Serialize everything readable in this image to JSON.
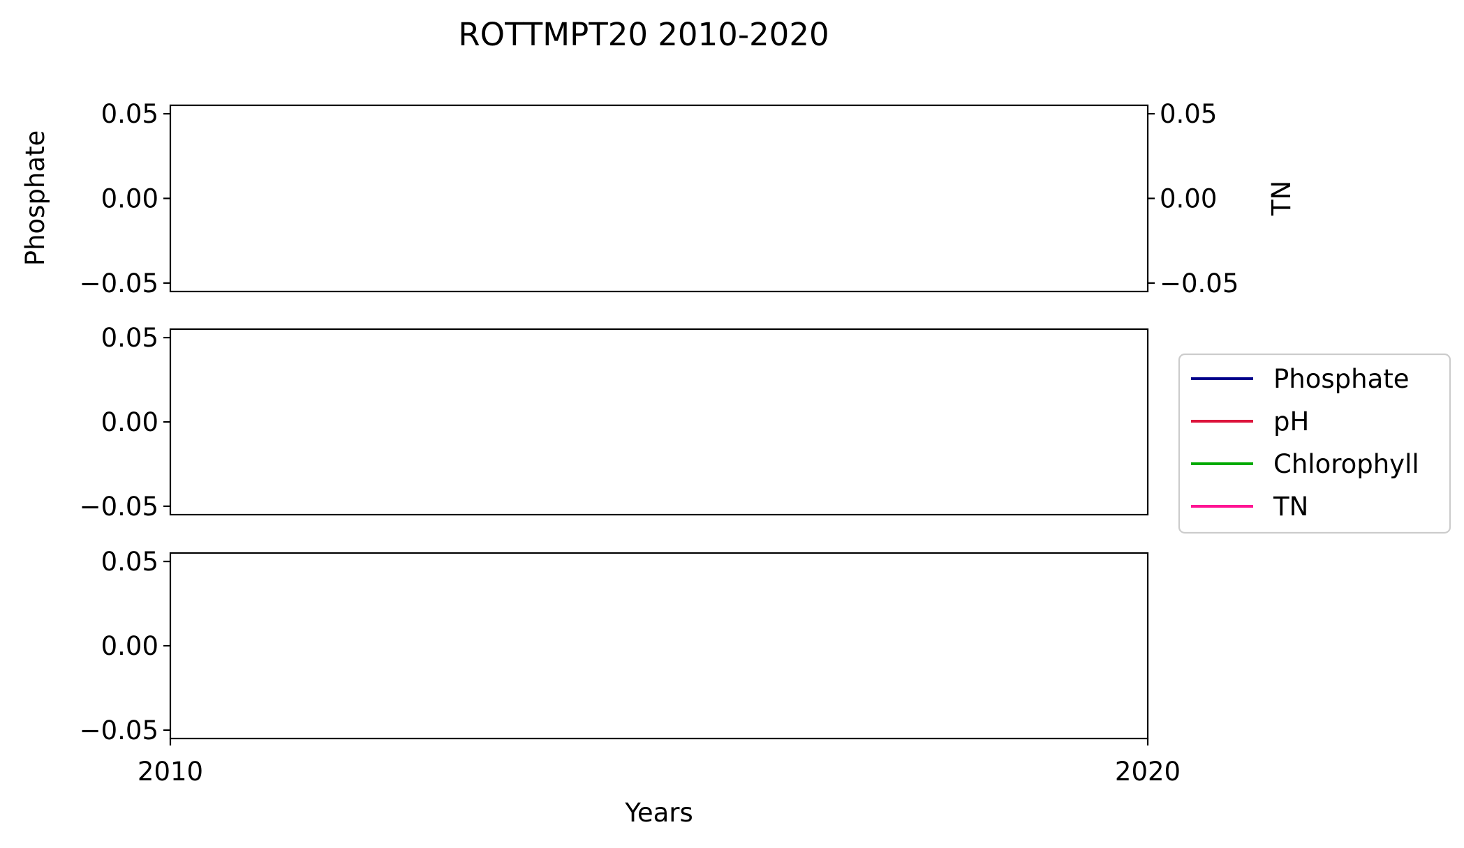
{
  "chart_data": {
    "type": "line",
    "title": "ROTTMPT20 2010-2020",
    "xlabel": "Years",
    "x_ticks": [
      "2010",
      "2020"
    ],
    "xlim": [
      2010,
      2020
    ],
    "grid": false,
    "legend_placement": "center-right",
    "series": [
      {
        "name": "Phosphate",
        "color": "#00008b",
        "values": []
      },
      {
        "name": "pH",
        "color": "#dc143c",
        "values": []
      },
      {
        "name": "Chlorophyll",
        "color": "#00aa00",
        "values": []
      },
      {
        "name": "TN",
        "color": "#ff1493",
        "values": []
      }
    ],
    "panels": [
      {
        "ylabel": "Phosphate",
        "ylim": [
          -0.055,
          0.055
        ],
        "y_ticks": [
          "0.05",
          "0.00",
          "−0.05"
        ],
        "y_tick_values": [
          0.05,
          0.0,
          -0.05
        ],
        "twin_ylabel": "TN",
        "twin_y_ticks": [
          "0.05",
          "0.00",
          "−0.05"
        ],
        "twin_y_tick_values": [
          0.05,
          0.0,
          -0.05
        ]
      },
      {
        "ylabel": "",
        "ylim": [
          -0.055,
          0.055
        ],
        "y_ticks": [
          "0.05",
          "0.00",
          "−0.05"
        ],
        "y_tick_values": [
          0.05,
          0.0,
          -0.05
        ]
      },
      {
        "ylabel": "",
        "ylim": [
          -0.055,
          0.055
        ],
        "y_ticks": [
          "0.05",
          "0.00",
          "−0.05"
        ],
        "y_tick_values": [
          0.05,
          0.0,
          -0.05
        ]
      }
    ]
  }
}
